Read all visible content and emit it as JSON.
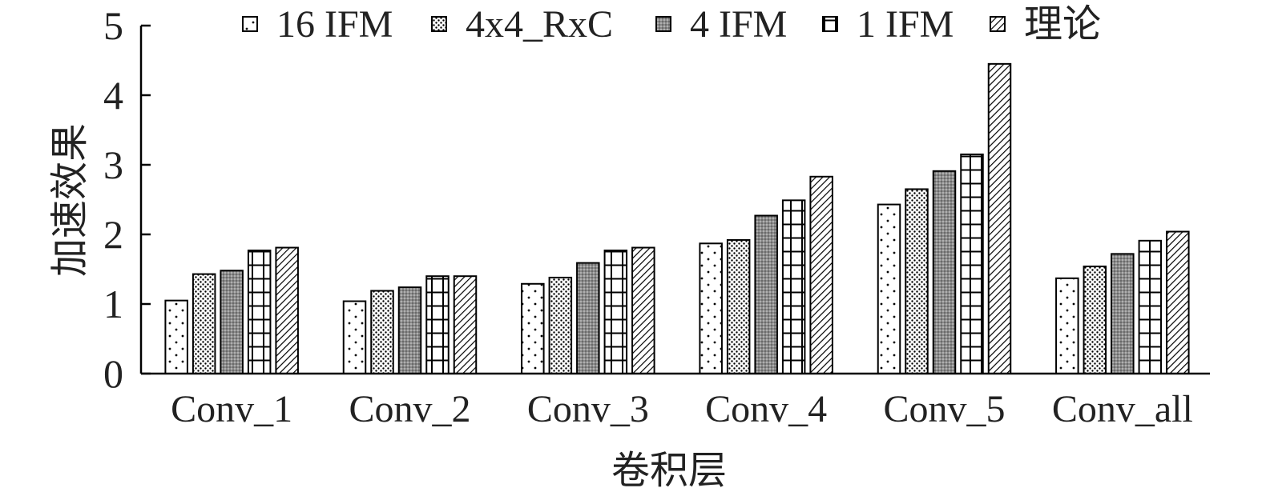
{
  "chart_data": {
    "type": "bar",
    "title": "",
    "xlabel": "卷积层",
    "ylabel": "加速效果",
    "ylim": [
      0,
      5
    ],
    "yticks": [
      0,
      1,
      2,
      3,
      4,
      5
    ],
    "grid": false,
    "legend_position": "top",
    "categories": [
      "Conv_1",
      "Conv_2",
      "Conv_3",
      "Conv_4",
      "Conv_5",
      "Conv_all"
    ],
    "series": [
      {
        "name": "16 IFM",
        "pattern": "sparse-dots",
        "values": [
          1.05,
          1.04,
          1.29,
          1.87,
          2.43,
          1.37
        ]
      },
      {
        "name": "4x4_RxC",
        "pattern": "dense-dots",
        "values": [
          1.43,
          1.19,
          1.38,
          1.92,
          2.65,
          1.54
        ]
      },
      {
        "name": "4 IFM",
        "pattern": "gray-fill",
        "values": [
          1.48,
          1.24,
          1.59,
          2.27,
          2.91,
          1.72
        ]
      },
      {
        "name": "1 IFM",
        "pattern": "grid",
        "values": [
          1.77,
          1.4,
          1.77,
          2.49,
          3.15,
          1.91
        ]
      },
      {
        "name": "理论",
        "pattern": "diagonal",
        "values": [
          1.81,
          1.4,
          1.81,
          2.83,
          4.45,
          2.04
        ]
      }
    ]
  }
}
